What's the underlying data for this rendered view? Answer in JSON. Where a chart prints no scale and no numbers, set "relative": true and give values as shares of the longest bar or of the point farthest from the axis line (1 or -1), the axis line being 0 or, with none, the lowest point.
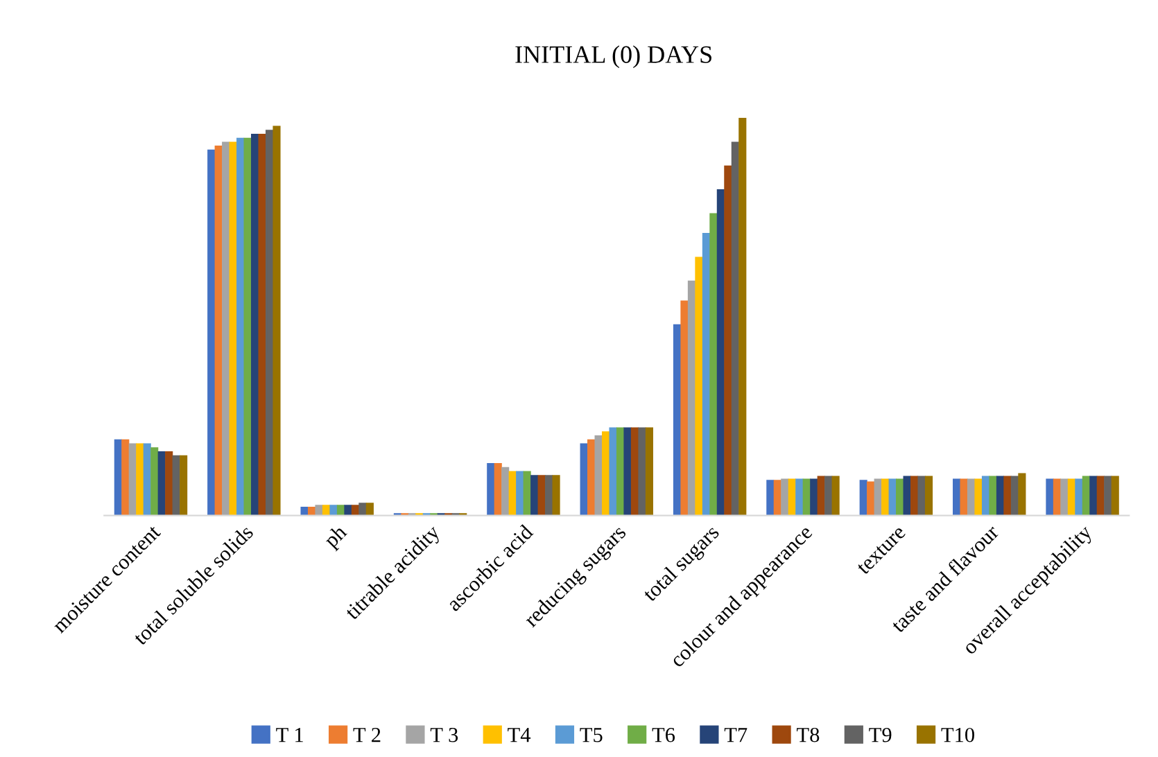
{
  "chart_data": {
    "type": "bar",
    "title": "INITIAL (0) DAYS",
    "relative": true,
    "legend": "bottom",
    "grid": false,
    "categories": [
      "moisture content",
      "total soluble solids",
      "ph",
      "titrable acidity",
      "ascorbic acid",
      "reducing sugars",
      "total sugars",
      "colour and appearance",
      "texture",
      "taste and flavour",
      "overall acceptability"
    ],
    "series": [
      {
        "name": "T 1",
        "color": "#4472c4",
        "values": [
          0.19,
          0.92,
          0.02,
          0.004,
          0.13,
          0.18,
          0.48,
          0.088,
          0.088,
          0.091,
          0.091
        ]
      },
      {
        "name": "T 2",
        "color": "#ed7d31",
        "values": [
          0.19,
          0.93,
          0.02,
          0.004,
          0.13,
          0.19,
          0.54,
          0.088,
          0.084,
          0.091,
          0.091
        ]
      },
      {
        "name": "T 3",
        "color": "#a5a5a5",
        "values": [
          0.18,
          0.94,
          0.025,
          0.004,
          0.12,
          0.2,
          0.59,
          0.091,
          0.091,
          0.091,
          0.091
        ]
      },
      {
        "name": "T4",
        "color": "#ffc000",
        "values": [
          0.18,
          0.94,
          0.025,
          0.004,
          0.11,
          0.21,
          0.65,
          0.091,
          0.091,
          0.091,
          0.091
        ]
      },
      {
        "name": "T5",
        "color": "#5b9bd5",
        "values": [
          0.18,
          0.95,
          0.025,
          0.004,
          0.11,
          0.22,
          0.71,
          0.091,
          0.091,
          0.098,
          0.091
        ]
      },
      {
        "name": "T6",
        "color": "#70ad47",
        "values": [
          0.17,
          0.95,
          0.025,
          0.004,
          0.11,
          0.22,
          0.76,
          0.091,
          0.091,
          0.098,
          0.098
        ]
      },
      {
        "name": "T7",
        "color": "#264478",
        "values": [
          0.16,
          0.96,
          0.025,
          0.004,
          0.1,
          0.22,
          0.82,
          0.091,
          0.098,
          0.098,
          0.098
        ]
      },
      {
        "name": "T8",
        "color": "#9e480e",
        "values": [
          0.16,
          0.96,
          0.025,
          0.004,
          0.1,
          0.22,
          0.88,
          0.098,
          0.098,
          0.098,
          0.098
        ]
      },
      {
        "name": "T9",
        "color": "#636363",
        "values": [
          0.15,
          0.97,
          0.03,
          0.004,
          0.1,
          0.22,
          0.94,
          0.098,
          0.098,
          0.098,
          0.098
        ]
      },
      {
        "name": "T10",
        "color": "#997300",
        "values": [
          0.15,
          0.98,
          0.03,
          0.004,
          0.1,
          0.22,
          1,
          0.098,
          0.098,
          0.105,
          0.098
        ]
      }
    ]
  }
}
